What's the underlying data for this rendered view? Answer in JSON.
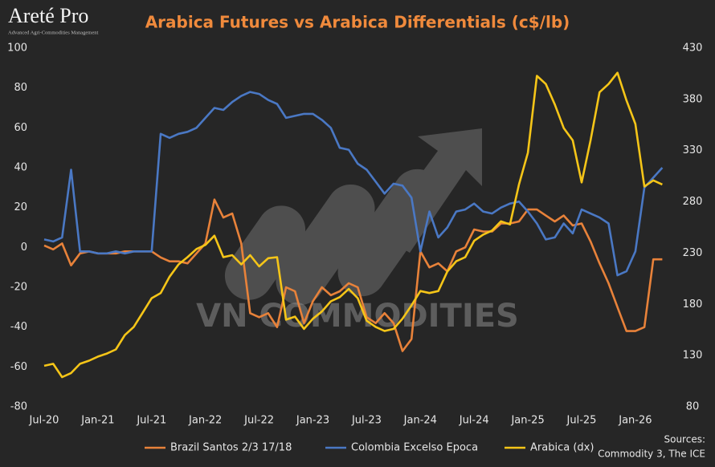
{
  "logo": "Areté Pro",
  "logo_tagline": "Advanced Agri-Commodities Management",
  "watermark": "VN COMMODITIES",
  "source_label": "Sources:",
  "source_text": "Commodity 3, The ICE",
  "chart_data": {
    "type": "line",
    "title": "Arabica Futures vs Arabica Differentials (c$/lb)",
    "categories": [
      "Jul-20",
      null,
      null,
      null,
      null,
      null,
      "Jan-21",
      null,
      null,
      null,
      null,
      null,
      "Jul-21",
      null,
      null,
      null,
      null,
      null,
      "Jan-22",
      null,
      null,
      null,
      null,
      null,
      "Jul-22",
      null,
      null,
      null,
      null,
      null,
      "Jan-23",
      null,
      null,
      null,
      null,
      null,
      "Jul-23",
      null,
      null,
      null,
      null,
      null,
      "Jan-24",
      null,
      null,
      null,
      null,
      null,
      "Jul-24",
      null,
      null,
      null,
      null,
      null,
      "Jan-25",
      null,
      null,
      null,
      null,
      null,
      "Jul-25",
      null,
      null,
      null,
      null,
      null,
      "Jan-26",
      null,
      null,
      null
    ],
    "ylim": [
      -80,
      100
    ],
    "yticks": [
      -80,
      -60,
      -40,
      -20,
      0,
      20,
      40,
      60,
      80,
      100
    ],
    "y2lim": [
      80,
      430
    ],
    "y2ticks": [
      80,
      130,
      180,
      230,
      280,
      330,
      380,
      430
    ],
    "grid": false,
    "legend": "bottom",
    "series": [
      {
        "name": "Brazil Santos 2/3 17/18",
        "color": "#e8823a",
        "values": [
          1,
          -1,
          2,
          -9,
          -3,
          -2,
          -3,
          -3,
          -3,
          -2,
          -2,
          -2,
          -2,
          -5,
          -7,
          -7,
          -8,
          -3,
          2,
          24,
          15,
          17,
          2,
          -33,
          -35,
          -33,
          -40,
          -20,
          -22,
          -38,
          -27,
          -20,
          -24,
          -22,
          -18,
          -20,
          -35,
          -38,
          -33,
          -38,
          -52,
          -46,
          -2,
          -10,
          -8,
          -12,
          -2,
          0,
          9,
          8,
          8,
          12,
          12,
          13,
          19,
          19,
          16,
          13,
          16,
          11,
          12,
          3,
          -8,
          -18,
          -30,
          -42,
          -42,
          -40,
          -6,
          -6
        ]
      },
      {
        "name": "Colombia Excelso Epoca",
        "color": "#4a78c4",
        "values": [
          4,
          3,
          5,
          39,
          -2,
          -2,
          -3,
          -3,
          -2,
          -3,
          -2,
          -2,
          -2,
          57,
          55,
          57,
          58,
          60,
          65,
          70,
          69,
          73,
          76,
          78,
          77,
          74,
          72,
          65,
          66,
          67,
          67,
          64,
          60,
          50,
          49,
          42,
          39,
          33,
          27,
          32,
          31,
          25,
          -2,
          18,
          5,
          10,
          18,
          19,
          22,
          18,
          17,
          20,
          22,
          23,
          18,
          12,
          4,
          5,
          12,
          7,
          19,
          17,
          15,
          12,
          -14,
          -12,
          -2,
          30,
          35,
          40
        ]
      },
      {
        "name": "Arabica (dx)",
        "color": "#f5c518",
        "axis": "y2",
        "values": [
          120,
          122,
          109,
          113,
          122,
          125,
          129,
          132,
          136,
          150,
          158,
          172,
          186,
          191,
          207,
          219,
          226,
          234,
          238,
          247,
          226,
          228,
          219,
          228,
          217,
          225,
          226,
          165,
          168,
          156,
          166,
          173,
          183,
          187,
          195,
          186,
          164,
          158,
          154,
          156,
          166,
          179,
          193,
          191,
          193,
          212,
          222,
          226,
          242,
          248,
          252,
          261,
          258,
          297,
          328,
          403,
          395,
          375,
          352,
          340,
          299,
          340,
          387,
          395,
          406,
          379,
          356,
          295,
          301,
          297
        ]
      }
    ]
  }
}
